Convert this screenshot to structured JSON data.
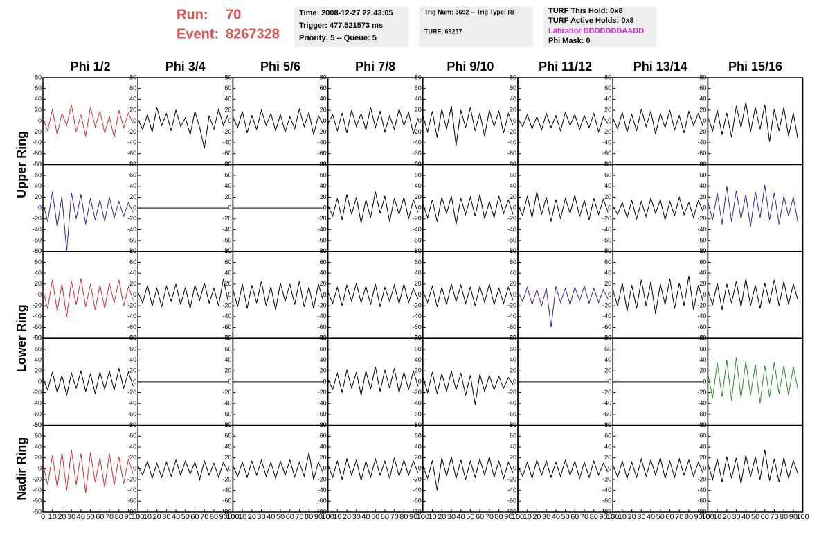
{
  "header": {
    "run_label": "Run:",
    "run": 70,
    "event_label": "Event:",
    "event": 8267328,
    "time": "Time: 2008-12-27 22:43:05",
    "trigger": "Trigger: 477.521573 ms",
    "priority": "Priority: 5 -- Queue: 5",
    "trig": "Trig Num: 3692 -- Trig Type: RF",
    "turf": "TURF: 69237",
    "hold": "TURF This Hold: 0x8",
    "active": "TURF Active Holds: 0x8",
    "labrador": "Labrador DDDDDDDAADD",
    "phimask": "Phi Mask: 0"
  },
  "chart_data": {
    "type": "line",
    "columns": [
      "Phi 1/2",
      "Phi 3/4",
      "Phi 5/6",
      "Phi 7/8",
      "Phi 9/10",
      "Phi 11/12",
      "Phi 13/14",
      "Phi 15/16"
    ],
    "rings": [
      "Upper Ring",
      "Lower Ring",
      "Nadir Ring"
    ],
    "xlim": [
      0,
      100
    ],
    "ylim": [
      -80,
      80
    ],
    "xticks": [
      0,
      10,
      20,
      30,
      40,
      50,
      60,
      70,
      80,
      90,
      100
    ],
    "yticks": [
      -80,
      -60,
      -40,
      -20,
      0,
      20,
      40,
      60,
      80
    ],
    "x": [
      0,
      5,
      10,
      15,
      20,
      25,
      30,
      35,
      40,
      45,
      50,
      55,
      60,
      65,
      70,
      75,
      80,
      85,
      90,
      95
    ],
    "series": [
      {
        "color": "#cc3333",
        "values": [
          5,
          -18,
          22,
          -25,
          14,
          -8,
          30,
          -20,
          12,
          -28,
          25,
          -10,
          18,
          -22,
          8,
          -30,
          20,
          -12,
          15,
          -5
        ]
      },
      {
        "color": "#000000",
        "values": [
          3,
          -15,
          12,
          -20,
          25,
          -8,
          14,
          -18,
          20,
          -10,
          6,
          -25,
          18,
          -12,
          -50,
          10,
          -15,
          22,
          -8,
          12
        ]
      },
      {
        "color": "#000000",
        "values": [
          8,
          -12,
          18,
          -22,
          10,
          -15,
          20,
          -8,
          14,
          -18,
          12,
          -20,
          8,
          -14,
          22,
          -10,
          16,
          -25,
          10,
          -6
        ]
      },
      {
        "color": "#000000",
        "values": [
          -5,
          12,
          -18,
          15,
          -22,
          20,
          -10,
          14,
          -16,
          25,
          -12,
          18,
          -20,
          10,
          -15,
          22,
          -8,
          16,
          -24,
          6
        ]
      },
      {
        "color": "#000000",
        "values": [
          10,
          -20,
          18,
          -30,
          22,
          -15,
          28,
          -45,
          20,
          -12,
          25,
          -18,
          15,
          -28,
          20,
          -10,
          18,
          -22,
          14,
          -8
        ]
      },
      {
        "color": "#000000",
        "values": [
          4,
          -10,
          12,
          -14,
          8,
          -16,
          14,
          -12,
          10,
          -18,
          16,
          -8,
          12,
          -15,
          10,
          -12,
          14,
          -20,
          8,
          -5
        ]
      },
      {
        "color": "#000000",
        "values": [
          6,
          -14,
          16,
          -20,
          12,
          -18,
          22,
          -10,
          18,
          -24,
          14,
          -12,
          20,
          -16,
          10,
          -22,
          18,
          -8,
          14,
          -10
        ]
      },
      {
        "color": "#000000",
        "values": [
          8,
          -18,
          20,
          -25,
          15,
          -30,
          28,
          -12,
          35,
          -20,
          25,
          -15,
          30,
          -38,
          22,
          -18,
          25,
          -28,
          15,
          -35
        ]
      },
      {
        "color": "#2b2b9a",
        "values": [
          10,
          -25,
          30,
          -35,
          22,
          -80,
          28,
          -20,
          25,
          -30,
          18,
          -22,
          15,
          -25,
          20,
          -18,
          12,
          -15,
          10,
          -8
        ]
      },
      {
        "color": "#000000",
        "values": [
          0,
          0,
          0,
          0,
          0,
          0,
          0,
          0,
          0,
          0,
          0,
          0,
          0,
          0,
          0,
          0,
          0,
          0,
          0,
          0
        ]
      },
      {
        "color": "#000000",
        "values": [
          0,
          0,
          0,
          0,
          0,
          0,
          0,
          0,
          0,
          0,
          0,
          0,
          0,
          0,
          0,
          0,
          0,
          0,
          0,
          0
        ]
      },
      {
        "color": "#000000",
        "values": [
          5,
          -15,
          18,
          -22,
          25,
          -12,
          20,
          -28,
          15,
          -18,
          30,
          -10,
          22,
          -25,
          18,
          -12,
          20,
          -20,
          15,
          -8
        ]
      },
      {
        "color": "#000000",
        "values": [
          8,
          -18,
          15,
          -25,
          20,
          -10,
          22,
          -30,
          18,
          -12,
          20,
          -15,
          25,
          -20,
          12,
          -18,
          22,
          -10,
          15,
          -12
        ]
      },
      {
        "color": "#000000",
        "values": [
          6,
          -14,
          22,
          -18,
          30,
          -12,
          20,
          -25,
          16,
          -20,
          18,
          -10,
          24,
          -16,
          14,
          -22,
          18,
          -12,
          16,
          -8
        ]
      },
      {
        "color": "#000000",
        "values": [
          4,
          -12,
          10,
          -18,
          14,
          -20,
          12,
          -16,
          18,
          -10,
          15,
          -22,
          12,
          -14,
          20,
          -12,
          10,
          -18,
          14,
          -6
        ]
      },
      {
        "color": "#2b2b9a",
        "values": [
          12,
          -22,
          28,
          -30,
          40,
          -25,
          32,
          -20,
          25,
          -35,
          30,
          -18,
          42,
          -22,
          28,
          -30,
          22,
          -15,
          20,
          -28
        ]
      },
      {
        "color": "#cc3333",
        "values": [
          8,
          -25,
          28,
          -30,
          20,
          -40,
          25,
          -18,
          30,
          -22,
          20,
          -28,
          18,
          -25,
          22,
          -15,
          28,
          -20,
          15,
          -10
        ]
      },
      {
        "color": "#000000",
        "values": [
          5,
          -15,
          18,
          -20,
          12,
          -22,
          16,
          -12,
          20,
          -18,
          14,
          -25,
          18,
          -10,
          22,
          -15,
          12,
          -20,
          30,
          -12
        ]
      },
      {
        "color": "#000000",
        "values": [
          10,
          -22,
          20,
          -25,
          18,
          -15,
          25,
          -20,
          15,
          -28,
          22,
          -12,
          20,
          -18,
          25,
          -22,
          15,
          -25,
          20,
          -10
        ]
      },
      {
        "color": "#000000",
        "values": [
          6,
          -16,
          14,
          -20,
          18,
          -12,
          22,
          -15,
          16,
          -18,
          20,
          -22,
          14,
          -12,
          18,
          -16,
          20,
          -14,
          12,
          -8
        ]
      },
      {
        "color": "#000000",
        "values": [
          8,
          -14,
          16,
          -22,
          14,
          -18,
          20,
          -12,
          18,
          -16,
          14,
          -20,
          16,
          -14,
          20,
          -18,
          12,
          -16,
          14,
          -10
        ]
      },
      {
        "color": "#2b2b9a",
        "values": [
          6,
          -12,
          14,
          -18,
          10,
          -20,
          12,
          -60,
          16,
          -14,
          12,
          -18,
          14,
          -10,
          16,
          -15,
          12,
          -14,
          10,
          -8
        ]
      },
      {
        "color": "#000000",
        "values": [
          10,
          -20,
          22,
          -30,
          18,
          -25,
          28,
          -20,
          24,
          -35,
          20,
          -18,
          30,
          -25,
          22,
          -20,
          35,
          -28,
          18,
          -12
        ]
      },
      {
        "color": "#000000",
        "values": [
          8,
          -18,
          22,
          -28,
          20,
          -15,
          25,
          -22,
          30,
          -20,
          18,
          -25,
          22,
          -15,
          28,
          -20,
          25,
          -18,
          20,
          -10
        ]
      },
      {
        "color": "#000000",
        "values": [
          6,
          -15,
          18,
          -20,
          12,
          -25,
          16,
          -12,
          20,
          -18,
          15,
          -22,
          18,
          -14,
          20,
          -16,
          25,
          -12,
          18,
          -8
        ]
      },
      {
        "color": "#000000",
        "values": [
          0,
          0,
          0,
          0,
          0,
          0,
          0,
          0,
          0,
          0,
          0,
          0,
          0,
          0,
          0,
          0,
          0,
          0,
          0,
          0
        ]
      },
      {
        "color": "#000000",
        "values": [
          0,
          0,
          0,
          0,
          0,
          0,
          0,
          0,
          0,
          0,
          0,
          0,
          0,
          0,
          0,
          0,
          0,
          0,
          0,
          0
        ]
      },
      {
        "color": "#000000",
        "values": [
          5,
          -14,
          16,
          -20,
          22,
          -12,
          18,
          -25,
          20,
          -14,
          28,
          -18,
          22,
          -12,
          25,
          -20,
          18,
          -15,
          20,
          -8
        ]
      },
      {
        "color": "#000000",
        "values": [
          10,
          -20,
          18,
          -22,
          15,
          -18,
          20,
          -15,
          16,
          -25,
          12,
          -42,
          14,
          -18,
          12,
          -15,
          10,
          -12,
          8,
          -5
        ]
      },
      {
        "color": "#000000",
        "values": [
          0,
          0,
          0,
          0,
          0,
          0,
          0,
          0,
          0,
          0,
          0,
          0,
          0,
          0,
          0,
          0,
          0,
          0,
          0,
          0
        ]
      },
      {
        "color": "#000000",
        "values": [
          0,
          0,
          0,
          0,
          0,
          0,
          0,
          0,
          0,
          0,
          0,
          0,
          0,
          0,
          0,
          0,
          0,
          0,
          0,
          0
        ]
      },
      {
        "color": "#2e8b2e",
        "values": [
          15,
          -30,
          35,
          -28,
          40,
          -35,
          45,
          -30,
          38,
          -25,
          32,
          -40,
          30,
          -28,
          35,
          -22,
          30,
          -25,
          28,
          -15
        ]
      },
      {
        "color": "#cc3333",
        "values": [
          10,
          -30,
          25,
          -35,
          30,
          -40,
          35,
          -30,
          28,
          -45,
          30,
          -25,
          20,
          -35,
          28,
          -30,
          22,
          -28,
          18,
          -10
        ]
      },
      {
        "color": "#000000",
        "values": [
          5,
          -12,
          14,
          -18,
          10,
          -16,
          12,
          -14,
          16,
          -12,
          14,
          -10,
          12,
          -20,
          14,
          -12,
          10,
          -16,
          12,
          -6
        ]
      },
      {
        "color": "#000000",
        "values": [
          6,
          -14,
          12,
          -16,
          14,
          -12,
          16,
          -14,
          12,
          -18,
          14,
          -12,
          16,
          -15,
          12,
          -14,
          30,
          -20,
          12,
          -8
        ]
      },
      {
        "color": "#000000",
        "values": [
          8,
          -16,
          14,
          -20,
          18,
          -12,
          16,
          -22,
          14,
          -16,
          18,
          -12,
          14,
          -18,
          20,
          -14,
          16,
          -12,
          14,
          -8
        ]
      },
      {
        "color": "#000000",
        "values": [
          5,
          -18,
          15,
          -40,
          20,
          -14,
          22,
          -18,
          16,
          -20,
          14,
          -16,
          18,
          -12,
          22,
          -16,
          14,
          -18,
          12,
          -8
        ]
      },
      {
        "color": "#000000",
        "values": [
          6,
          -14,
          12,
          -18,
          16,
          -12,
          14,
          -16,
          12,
          -14,
          16,
          -12,
          14,
          -18,
          12,
          -16,
          14,
          -12,
          10,
          -6
        ]
      },
      {
        "color": "#000000",
        "values": [
          8,
          -16,
          14,
          -18,
          12,
          -16,
          18,
          -14,
          16,
          -12,
          20,
          -18,
          14,
          -16,
          18,
          -12,
          16,
          -14,
          12,
          -8
        ]
      },
      {
        "color": "#000000",
        "values": [
          10,
          -20,
          18,
          -25,
          22,
          -18,
          20,
          -28,
          25,
          -15,
          22,
          -20,
          35,
          -22,
          18,
          -25,
          20,
          -18,
          15,
          -10
        ]
      }
    ]
  }
}
